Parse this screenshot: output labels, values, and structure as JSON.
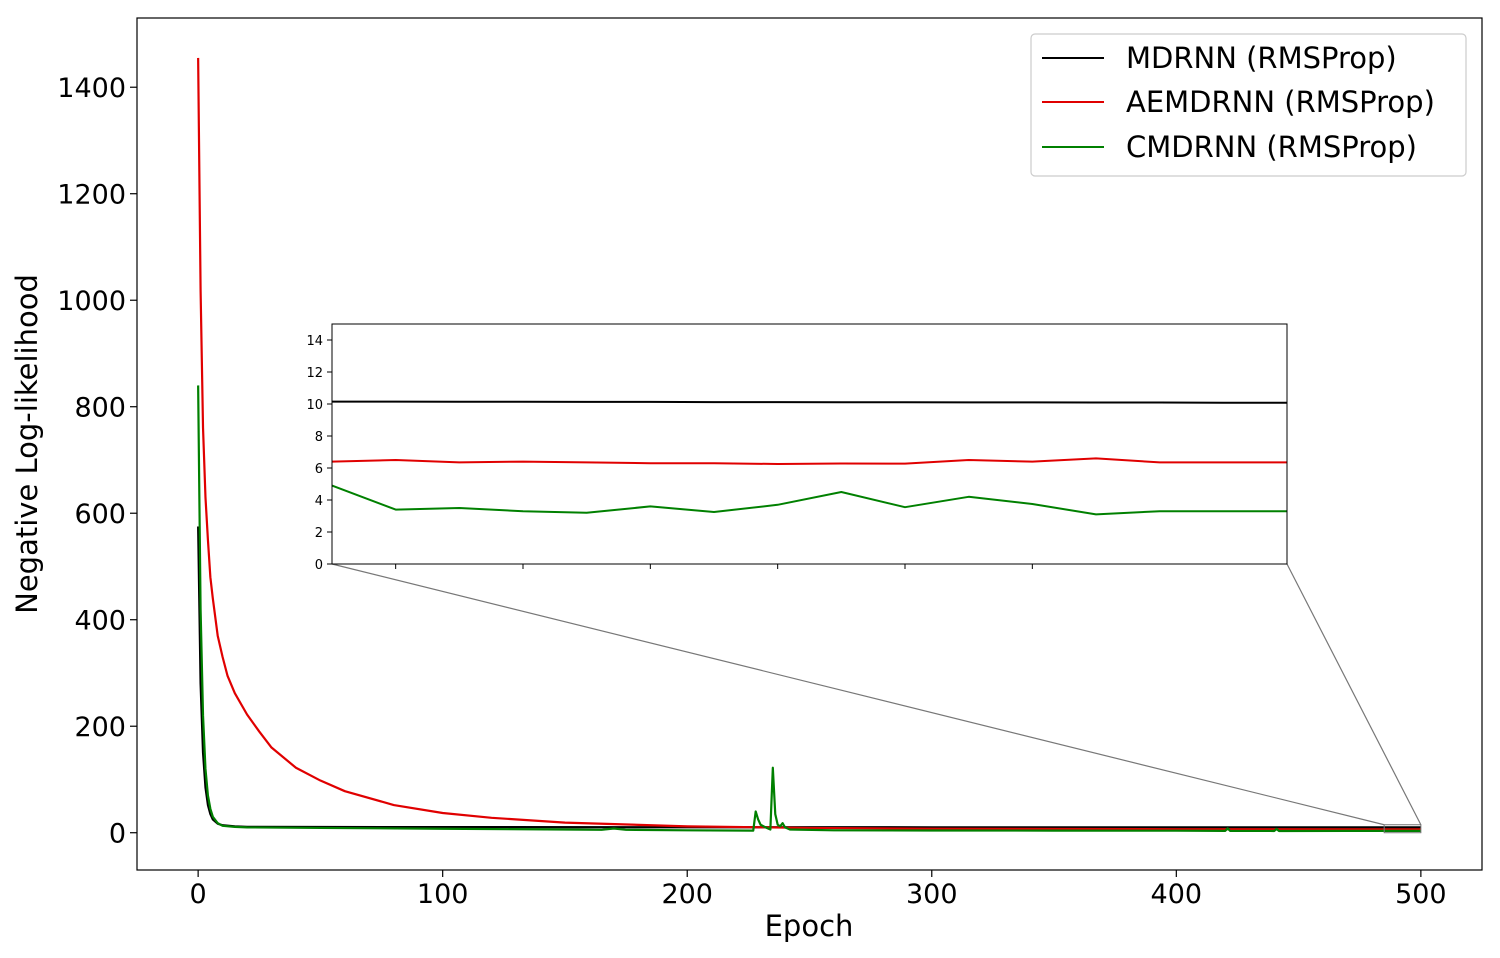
{
  "chart_data": {
    "type": "line",
    "title": "",
    "xlabel": "Epoch",
    "ylabel": "Negative Log-likelihood",
    "xlim": [
      -25,
      525
    ],
    "ylim": [
      -70,
      1530
    ],
    "xticks": [
      0,
      100,
      200,
      300,
      400,
      500
    ],
    "yticks": [
      0,
      200,
      400,
      600,
      800,
      1000,
      1200,
      1400
    ],
    "grid": false,
    "legend": "top-right",
    "series": [
      {
        "name": "MDRNN (RMSProp)",
        "color": "#000000",
        "points": [
          [
            0,
            575
          ],
          [
            1,
            280
          ],
          [
            2,
            150
          ],
          [
            3,
            85
          ],
          [
            4,
            52
          ],
          [
            5,
            35
          ],
          [
            6,
            25
          ],
          [
            8,
            17
          ],
          [
            10,
            14
          ],
          [
            15,
            12
          ],
          [
            20,
            11
          ],
          [
            50,
            10.8
          ],
          [
            100,
            10.5
          ],
          [
            200,
            10.3
          ],
          [
            300,
            10.2
          ],
          [
            400,
            10.1
          ],
          [
            500,
            10.05
          ]
        ]
      },
      {
        "name": "AEMDRNN (RMSProp)",
        "color": "#e00000",
        "points": [
          [
            0,
            1455
          ],
          [
            1,
            1020
          ],
          [
            2,
            760
          ],
          [
            3,
            630
          ],
          [
            4,
            550
          ],
          [
            5,
            480
          ],
          [
            6,
            440
          ],
          [
            8,
            370
          ],
          [
            10,
            330
          ],
          [
            12,
            295
          ],
          [
            15,
            262
          ],
          [
            20,
            222
          ],
          [
            25,
            190
          ],
          [
            30,
            160
          ],
          [
            40,
            122
          ],
          [
            50,
            98
          ],
          [
            60,
            78
          ],
          [
            80,
            52
          ],
          [
            100,
            37
          ],
          [
            120,
            28
          ],
          [
            150,
            19
          ],
          [
            200,
            12
          ],
          [
            250,
            9
          ],
          [
            300,
            7.5
          ],
          [
            400,
            6.6
          ],
          [
            500,
            6.4
          ]
        ]
      },
      {
        "name": "CMDRNN (RMSProp)",
        "color": "#008000",
        "points": [
          [
            0,
            840
          ],
          [
            1,
            420
          ],
          [
            2,
            220
          ],
          [
            3,
            120
          ],
          [
            4,
            70
          ],
          [
            5,
            45
          ],
          [
            6,
            30
          ],
          [
            8,
            18
          ],
          [
            10,
            13
          ],
          [
            15,
            11
          ],
          [
            20,
            10
          ],
          [
            50,
            9
          ],
          [
            100,
            7.5
          ],
          [
            150,
            6
          ],
          [
            165,
            5.5
          ],
          [
            170,
            8
          ],
          [
            175,
            5.5
          ],
          [
            200,
            4.5
          ],
          [
            227,
            4
          ],
          [
            228,
            40
          ],
          [
            229,
            25
          ],
          [
            230,
            15
          ],
          [
            232,
            10
          ],
          [
            234,
            6
          ],
          [
            235,
            122
          ],
          [
            236,
            35
          ],
          [
            237,
            15
          ],
          [
            238,
            12
          ],
          [
            239,
            18
          ],
          [
            240,
            10
          ],
          [
            242,
            6
          ],
          [
            260,
            4.5
          ],
          [
            300,
            4.2
          ],
          [
            350,
            4
          ],
          [
            400,
            3.8
          ],
          [
            420,
            3.5
          ],
          [
            421,
            8
          ],
          [
            422,
            3.5
          ],
          [
            440,
            3.3
          ],
          [
            441,
            7
          ],
          [
            442,
            3.3
          ],
          [
            470,
            3.5
          ],
          [
            500,
            3.4
          ]
        ]
      }
    ],
    "inset": {
      "xlim": [
        485,
        500
      ],
      "ylim": [
        0,
        15
      ],
      "yticks": [
        0,
        2,
        4,
        6,
        8,
        10,
        12,
        14
      ],
      "xticks": [
        486,
        488,
        490,
        492,
        494,
        496
      ],
      "series": [
        {
          "name": "MDRNN (RMSProp)",
          "color": "#000000",
          "x": [
            485,
            486,
            487,
            488,
            489,
            490,
            491,
            492,
            493,
            494,
            495,
            496,
            497,
            498,
            499,
            500
          ],
          "y": [
            10.15,
            10.15,
            10.14,
            10.14,
            10.13,
            10.13,
            10.12,
            10.12,
            10.11,
            10.11,
            10.1,
            10.1,
            10.09,
            10.09,
            10.08,
            10.08
          ]
        },
        {
          "name": "AEMDRNN (RMSProp)",
          "color": "#e00000",
          "x": [
            485,
            486,
            487,
            488,
            489,
            490,
            491,
            492,
            493,
            494,
            495,
            496,
            497,
            498,
            499,
            500
          ],
          "y": [
            6.4,
            6.5,
            6.35,
            6.4,
            6.35,
            6.3,
            6.3,
            6.25,
            6.28,
            6.27,
            6.5,
            6.4,
            6.6,
            6.35,
            6.35,
            6.35
          ]
        },
        {
          "name": "CMDRNN (RMSProp)",
          "color": "#008000",
          "x": [
            485,
            486,
            487,
            488,
            489,
            490,
            491,
            492,
            493,
            494,
            495,
            496,
            497,
            498,
            499,
            500
          ],
          "y": [
            4.9,
            3.4,
            3.5,
            3.3,
            3.2,
            3.6,
            3.25,
            3.7,
            4.5,
            3.55,
            4.2,
            3.75,
            3.1,
            3.3,
            3.3,
            3.3
          ]
        }
      ]
    }
  }
}
